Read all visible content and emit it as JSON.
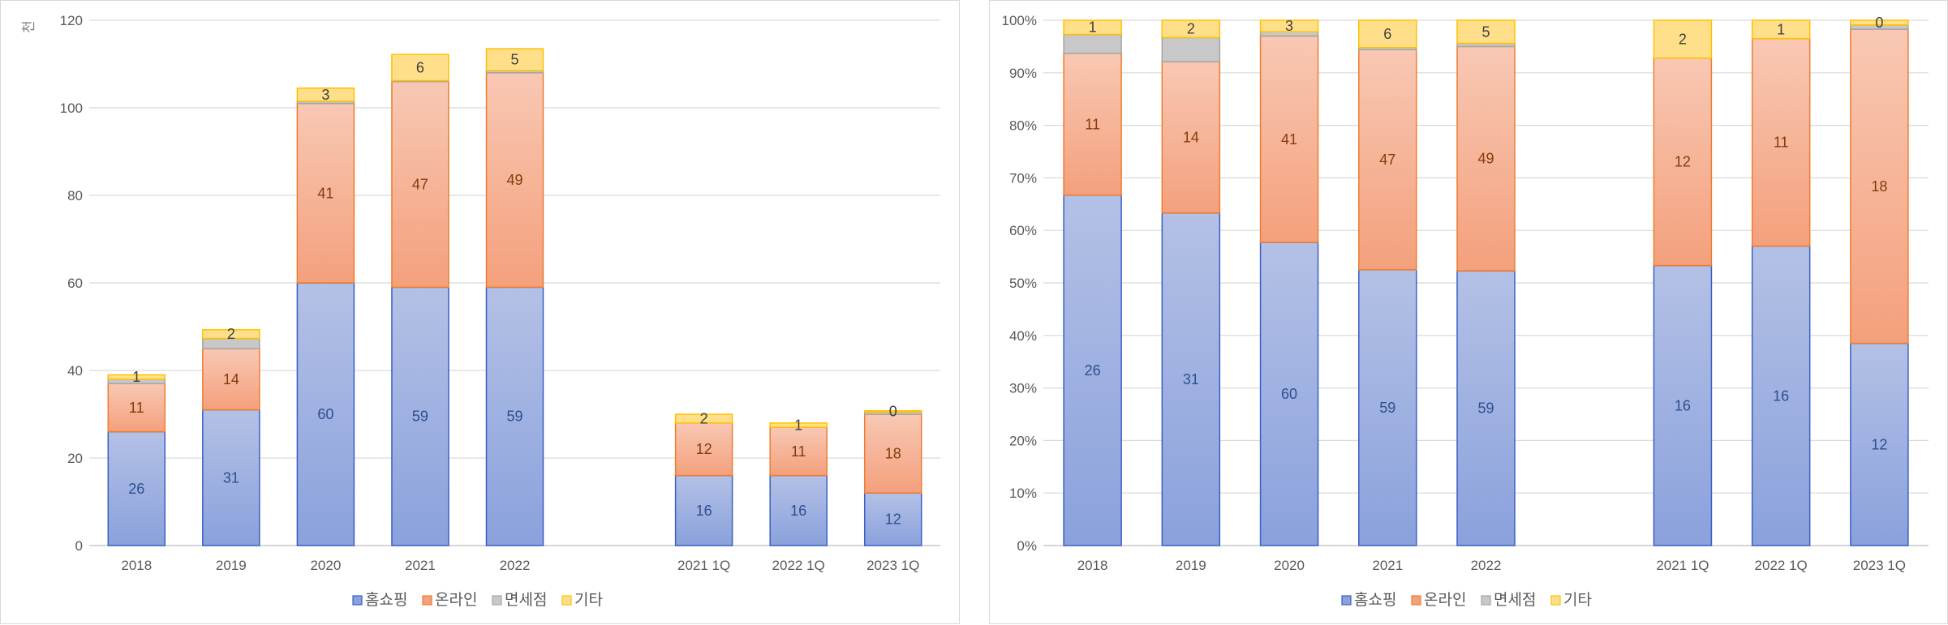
{
  "colors": {
    "homeshopping_top": "#b4c1e6",
    "homeshopping_bottom": "#8aa1dc",
    "homeshopping_edge": "#3c5fc4",
    "online_top": "#f8c8b4",
    "online_bottom": "#f4a07c",
    "online_edge": "#ed7d31",
    "dutyfree_fill": "#c8c8c8",
    "dutyfree_edge": "#a5a5a5",
    "etc_fill": "#ffdf8a",
    "etc_edge": "#ffc000",
    "label_blue": "#2f4f8f",
    "label_orange": "#843c0c",
    "label_gray": "#404040",
    "grid": "#d9d9d9",
    "axis": "#bfbfbf"
  },
  "chart_data": [
    {
      "type": "bar",
      "stacked": true,
      "title": "",
      "unit_label": "천",
      "categories": [
        "2018",
        "2019",
        "2020",
        "2021",
        "2022",
        "",
        "2021 1Q",
        "2022 1Q",
        "2023 1Q"
      ],
      "ylim": [
        0,
        120
      ],
      "yticks": [
        0,
        20,
        40,
        60,
        80,
        100,
        120
      ],
      "grid": true,
      "legend_position": "bottom",
      "series": [
        {
          "name": "홈쇼핑",
          "values": [
            26,
            31,
            60,
            59,
            59,
            null,
            16,
            16,
            12
          ],
          "labels": [
            "26",
            "31",
            "60",
            "59",
            "59",
            null,
            "16",
            "16",
            "12"
          ]
        },
        {
          "name": "온라인",
          "values": [
            11,
            14,
            41,
            47,
            49,
            null,
            12,
            11,
            18
          ],
          "labels": [
            "11",
            "14",
            "41",
            "47",
            "49",
            null,
            "12",
            "11",
            "18"
          ]
        },
        {
          "name": "면세점",
          "values": [
            1,
            2.3,
            0.5,
            0.2,
            0.5,
            null,
            0,
            0,
            0.5
          ],
          "labels": [
            null,
            null,
            null,
            null,
            null,
            null,
            null,
            null,
            null
          ]
        },
        {
          "name": "기타",
          "values": [
            1,
            2,
            3,
            6,
            5,
            null,
            2,
            1,
            0.3
          ],
          "labels": [
            "1",
            "2",
            "3",
            "6",
            "5",
            null,
            "2",
            "1",
            "0"
          ]
        }
      ]
    },
    {
      "type": "bar",
      "stacked": true,
      "percent": true,
      "title": "",
      "categories": [
        "2018",
        "2019",
        "2020",
        "2021",
        "2022",
        "",
        "2021 1Q",
        "2022 1Q",
        "2023 1Q"
      ],
      "ylim": [
        0,
        100
      ],
      "yticks": [
        "0%",
        "10%",
        "20%",
        "30%",
        "40%",
        "50%",
        "60%",
        "70%",
        "80%",
        "90%",
        "100%"
      ],
      "grid": true,
      "legend_position": "bottom",
      "series": [
        {
          "name": "홈쇼핑",
          "values": [
            66.7,
            63.3,
            57.7,
            52.5,
            52.3,
            null,
            53.3,
            57.0,
            38.5
          ],
          "labels": [
            "26",
            "31",
            "60",
            "59",
            "59",
            null,
            "16",
            "16",
            "12"
          ]
        },
        {
          "name": "온라인",
          "values": [
            27.0,
            28.8,
            39.3,
            41.9,
            42.7,
            null,
            39.5,
            39.5,
            59.8
          ],
          "labels": [
            "11",
            "14",
            "41",
            "47",
            "49",
            null,
            "12",
            "11",
            "18"
          ]
        },
        {
          "name": "면세점",
          "values": [
            3.6,
            4.6,
            0.8,
            0.4,
            0.6,
            null,
            0,
            0,
            0.8
          ],
          "labels": [
            null,
            null,
            null,
            null,
            null,
            null,
            null,
            null,
            null
          ]
        },
        {
          "name": "기타",
          "values": [
            2.7,
            3.3,
            2.2,
            5.2,
            4.4,
            null,
            7.2,
            3.5,
            0.9
          ],
          "labels": [
            "1",
            "2",
            "3",
            "6",
            "5",
            null,
            "2",
            "1",
            "0"
          ]
        }
      ]
    }
  ]
}
